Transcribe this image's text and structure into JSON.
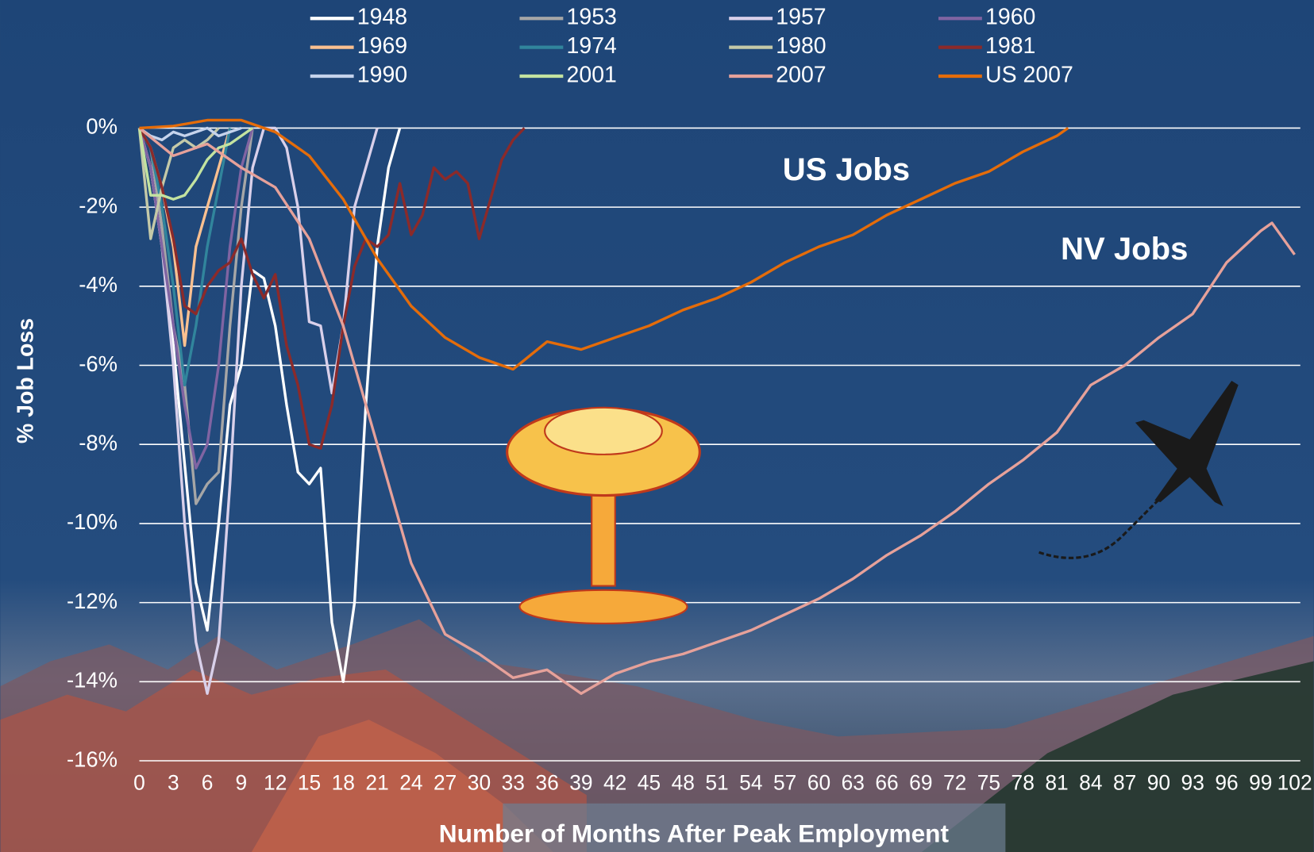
{
  "chart_data": {
    "type": "line",
    "y_label": "% Job Loss",
    "x_label": "Number of Months After Peak Employment",
    "annotations": [
      {
        "text": "US Jobs",
        "color": "#e46c0a"
      },
      {
        "text": "NV Jobs",
        "color": "#e6a19a"
      }
    ],
    "xlim": [
      0,
      102.5
    ],
    "xticks": [
      0,
      3,
      6,
      9,
      12,
      15,
      18,
      21,
      24,
      27,
      30,
      33,
      36,
      39,
      42,
      45,
      48,
      51,
      54,
      57,
      60,
      63,
      66,
      69,
      72,
      75,
      78,
      81,
      84,
      87,
      90,
      93,
      96,
      99,
      102
    ],
    "ylim": [
      -16,
      0
    ],
    "yticks": [
      {
        "value": -16,
        "label": "-16%"
      },
      {
        "value": -14,
        "label": "-14%"
      },
      {
        "value": -12,
        "label": "-12%"
      },
      {
        "value": -10,
        "label": "-10%"
      },
      {
        "value": -8,
        "label": "-8%"
      },
      {
        "value": -6,
        "label": "-6%"
      },
      {
        "value": -4,
        "label": "-4%"
      },
      {
        "value": -2,
        "label": "-2%"
      },
      {
        "value": 0,
        "label": "0%"
      }
    ],
    "grid": true,
    "series": [
      {
        "name": "1948",
        "color": "#ffffff",
        "x": [
          0,
          1,
          2,
          3,
          4,
          5,
          6,
          7,
          8,
          9,
          10,
          11,
          12,
          13,
          14,
          15,
          16,
          17,
          18,
          19,
          20,
          21,
          22,
          23
        ],
        "values": [
          0,
          -1,
          -3,
          -5.5,
          -8.5,
          -11.5,
          -12.7,
          -10,
          -7,
          -6,
          -3.6,
          -3.8,
          -5,
          -7,
          -8.7,
          -9,
          -8.6,
          -12.5,
          -14,
          -12,
          -7,
          -3,
          -1,
          0
        ]
      },
      {
        "name": "1953",
        "color": "#a6a6a6",
        "x": [
          0,
          1,
          2,
          3,
          4,
          5,
          6,
          7,
          8,
          9,
          10
        ],
        "values": [
          0,
          -0.5,
          -2.5,
          -5,
          -6.5,
          -9.5,
          -9,
          -8.7,
          -5,
          -2,
          0
        ]
      },
      {
        "name": "1957",
        "color": "#d9d0ea",
        "x": [
          0,
          1,
          2,
          3,
          4,
          5,
          6,
          7,
          8,
          9,
          10,
          11,
          12,
          13,
          14,
          15,
          16,
          17,
          18,
          19,
          20,
          21
        ],
        "values": [
          0,
          -1,
          -3,
          -6,
          -10,
          -13,
          -14.3,
          -13,
          -9,
          -4,
          -1,
          0,
          0,
          -0.5,
          -2,
          -4.9,
          -5,
          -6.7,
          -5,
          -2,
          -1,
          0
        ]
      },
      {
        "name": "1960",
        "color": "#8064a2",
        "x": [
          0,
          1,
          2,
          3,
          4,
          5,
          6,
          7,
          8,
          9,
          10
        ],
        "values": [
          0,
          -1,
          -3,
          -5,
          -7,
          -8.6,
          -8,
          -6,
          -3,
          -1,
          0
        ]
      },
      {
        "name": "1969",
        "color": "#fac090",
        "x": [
          0,
          1,
          2,
          3,
          4,
          5,
          6,
          7,
          8
        ],
        "values": [
          0,
          -0.5,
          -1.5,
          -3,
          -5.5,
          -3,
          -2,
          -1,
          0
        ]
      },
      {
        "name": "1974",
        "color": "#31859c",
        "x": [
          0,
          1,
          2,
          3,
          4,
          5,
          6,
          7,
          8
        ],
        "values": [
          0,
          -0.5,
          -2,
          -4,
          -6.5,
          -5,
          -3,
          -1.5,
          0
        ]
      },
      {
        "name": "1980",
        "color": "#c4c9a8",
        "x": [
          0,
          1,
          2,
          3,
          4,
          5,
          6,
          7
        ],
        "values": [
          0,
          -2.8,
          -1.5,
          -0.5,
          -0.3,
          -0.5,
          -0.3,
          0
        ]
      },
      {
        "name": "1981",
        "color": "#8b2a2a",
        "x": [
          0,
          1,
          2,
          3,
          4,
          5,
          6,
          7,
          8,
          9,
          10,
          11,
          12,
          13,
          14,
          15,
          16,
          17,
          18,
          19,
          20,
          21,
          22,
          23,
          24,
          25,
          26,
          27,
          28,
          29,
          30,
          31,
          32,
          33,
          34
        ],
        "values": [
          0,
          -0.5,
          -1.5,
          -2.8,
          -4.5,
          -4.7,
          -4,
          -3.6,
          -3.4,
          -2.8,
          -3.7,
          -4.3,
          -3.7,
          -5.5,
          -6.5,
          -8,
          -8.1,
          -7,
          -5,
          -3.5,
          -2.8,
          -3,
          -2.7,
          -1.4,
          -2.7,
          -2.2,
          -1,
          -1.3,
          -1.1,
          -1.4,
          -2.8,
          -1.8,
          -0.8,
          -0.3,
          0
        ]
      },
      {
        "name": "1990",
        "color": "#c5d3ec",
        "x": [
          0,
          1,
          2,
          3,
          4,
          5,
          6,
          7,
          8,
          9
        ],
        "values": [
          0,
          -0.2,
          -0.3,
          -0.1,
          -0.2,
          -0.1,
          0,
          -0.2,
          -0.1,
          0
        ]
      },
      {
        "name": "2001",
        "color": "#c3e3a0",
        "x": [
          0,
          1,
          2,
          3,
          4,
          5,
          6,
          7,
          8,
          9,
          10
        ],
        "values": [
          0,
          -1.7,
          -1.7,
          -1.8,
          -1.7,
          -1.3,
          -0.8,
          -0.5,
          -0.4,
          -0.2,
          0
        ]
      },
      {
        "name": "2007",
        "color": "#e6a19a",
        "x": [
          0,
          3,
          6,
          9,
          12,
          15,
          18,
          21,
          24,
          27,
          30,
          33,
          36,
          39,
          42,
          45,
          48,
          51,
          54,
          57,
          60,
          63,
          66,
          69,
          72,
          75,
          78,
          81,
          84,
          87,
          90,
          93,
          96,
          99,
          100,
          102
        ],
        "values": [
          0,
          -0.7,
          -0.4,
          -1.0,
          -1.5,
          -2.8,
          -5,
          -8,
          -11,
          -12.8,
          -13.3,
          -13.9,
          -13.7,
          -14.3,
          -13.8,
          -13.5,
          -13.3,
          -13.0,
          -12.7,
          -12.3,
          -11.9,
          -11.4,
          -10.8,
          -10.3,
          -9.7,
          -9.0,
          -8.4,
          -7.7,
          -6.5,
          -6.0,
          -5.3,
          -4.7,
          -3.4,
          -2.6,
          -2.4,
          -3.2
        ]
      },
      {
        "name": "US 2007",
        "color": "#e46c0a",
        "x": [
          0,
          3,
          6,
          9,
          12,
          15,
          18,
          21,
          24,
          27,
          30,
          33,
          36,
          39,
          42,
          45,
          48,
          51,
          54,
          57,
          60,
          63,
          66,
          69,
          72,
          75,
          78,
          81,
          82
        ],
        "values": [
          0,
          0.05,
          0.2,
          0.2,
          -0.1,
          -0.7,
          -1.8,
          -3.3,
          -4.5,
          -5.3,
          -5.8,
          -6.1,
          -5.4,
          -5.6,
          -5.3,
          -5.0,
          -4.6,
          -4.3,
          -3.9,
          -3.4,
          -3.0,
          -2.7,
          -2.2,
          -1.8,
          -1.4,
          -1.1,
          -0.6,
          -0.2,
          0
        ]
      }
    ]
  }
}
